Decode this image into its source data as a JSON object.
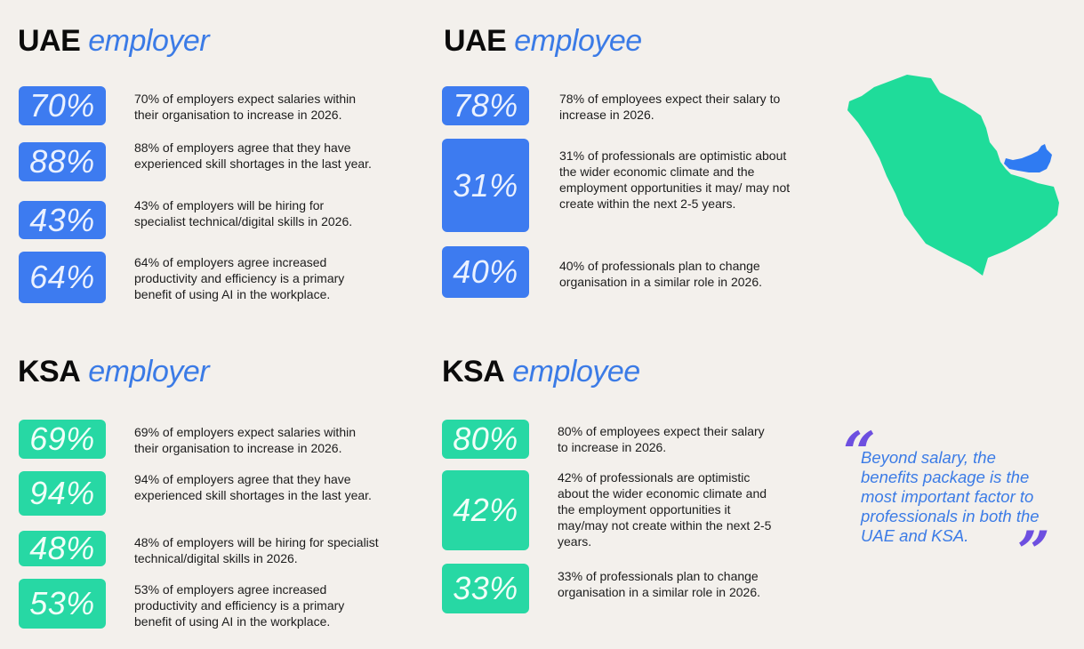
{
  "sections": {
    "uae_employer": {
      "bold": "UAE",
      "ital": "employer"
    },
    "uae_employee": {
      "bold": "UAE",
      "ital": "employee"
    },
    "ksa_employer": {
      "bold": "KSA",
      "ital": "employer"
    },
    "ksa_employee": {
      "bold": "KSA",
      "ital": "employee"
    }
  },
  "uae_employer_stats": [
    {
      "value": "70%",
      "text": "70% of employers expect salaries within their organisation to increase in 2026."
    },
    {
      "value": "88%",
      "text": "88% of employers agree that they have experienced skill shortages in the last year."
    },
    {
      "value": "43%",
      "text": "43% of employers will be hiring for specialist technical/digital skills in 2026."
    },
    {
      "value": "64%",
      "text": "64% of employers agree increased productivity and efficiency is a primary benefit of using AI in the workplace."
    }
  ],
  "uae_employee_stats": [
    {
      "value": "78%",
      "text": "78% of employees expect their salary to increase in 2026."
    },
    {
      "value": "31%",
      "text": "31% of professionals are optimistic about the wider economic climate and the employment opportunities it may/ may not create within the next 2-5 years."
    },
    {
      "value": "40%",
      "text": "40% of professionals plan to change organisation in a similar role in 2026."
    }
  ],
  "ksa_employer_stats": [
    {
      "value": "69%",
      "text": "69% of employers expect salaries within their organisation to increase in 2026."
    },
    {
      "value": "94%",
      "text": "94% of employers agree that they have experienced skill shortages in the last year."
    },
    {
      "value": "48%",
      "text": "48% of employers will be hiring for specialist technical/digital skills in 2026."
    },
    {
      "value": "53%",
      "text": "53% of employers agree increased productivity and efficiency is a primary benefit of using AI in the workplace."
    }
  ],
  "ksa_employee_stats": [
    {
      "value": "80%",
      "text": "80% of employees expect their salary to increase in 2026."
    },
    {
      "value": "42%",
      "text": "42% of professionals are optimistic about the wider economic climate and the employment opportunities it may/may not create within the next 2-5 years."
    },
    {
      "value": "33%",
      "text": "33% of professionals plan to change organisation in a similar role in 2026."
    }
  ],
  "quote": {
    "open": "“",
    "close": "”",
    "text": "Beyond salary, the benefits package is the most important factor to professionals in both the UAE and KSA."
  },
  "colors": {
    "blue": "#3d7bf0",
    "green": "#27d8a4",
    "accent_text": "#3b7be6",
    "quote_marks": "#6d4fe0",
    "map_ksa": "#1fdc9a",
    "map_uae": "#2f7bf2"
  }
}
